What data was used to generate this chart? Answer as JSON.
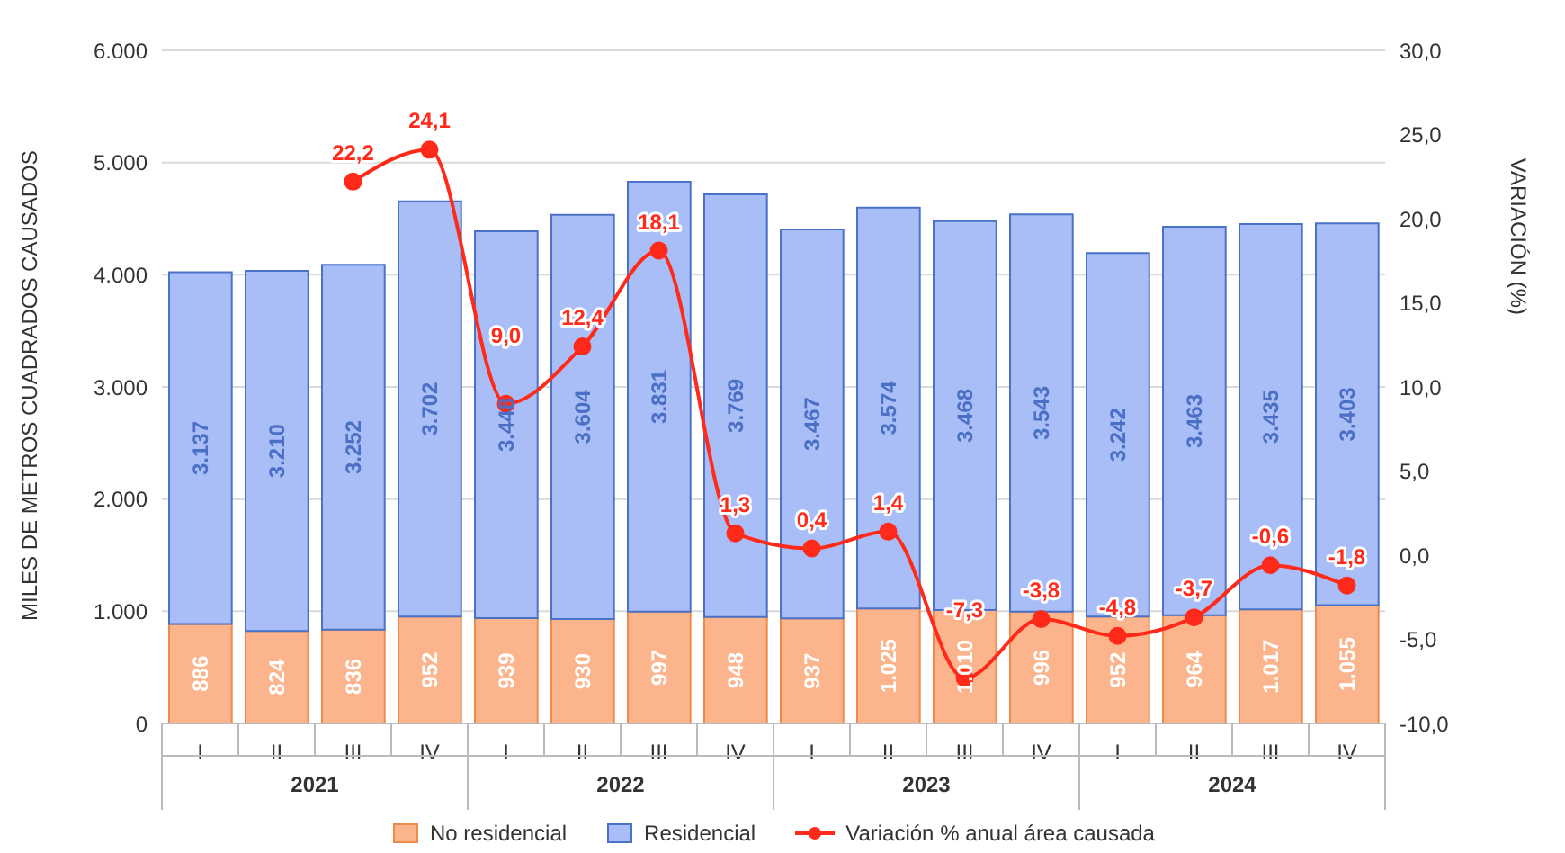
{
  "chart_data": {
    "type": "bar",
    "stacked": true,
    "categories": [
      "I",
      "II",
      "III",
      "IV",
      "I",
      "II",
      "III",
      "IV",
      "I",
      "II",
      "III",
      "IV",
      "I",
      "II",
      "III",
      "IV"
    ],
    "annotations": [
      "2021",
      "2022",
      "2023",
      "2024"
    ],
    "ylabel": "MILES DE METROS CUADRADOS CAUSADOS",
    "y2label": "VARIACIÓN (%)",
    "series": [
      {
        "name": "No residencial",
        "color": "#fbb48c",
        "values": [
          886,
          824,
          836,
          952,
          939,
          930,
          997,
          948,
          937,
          1025,
          1010,
          996,
          952,
          964,
          1017,
          1055
        ],
        "value_labels": [
          "886",
          "824",
          "836",
          "952",
          "939",
          "930",
          "997",
          "948",
          "937",
          "1.025",
          "1.010",
          "996",
          "952",
          "964",
          "1.017",
          "1.055"
        ]
      },
      {
        "name": "Residencial",
        "color": "#a9bef7",
        "values": [
          3137,
          3210,
          3252,
          3702,
          3448,
          3604,
          3831,
          3769,
          3467,
          3574,
          3468,
          3543,
          3242,
          3463,
          3435,
          3403
        ],
        "value_labels": [
          "3.137",
          "3.210",
          "3.252",
          "3.702",
          "3.448",
          "3.604",
          "3.831",
          "3.769",
          "3.467",
          "3.574",
          "3.468",
          "3.543",
          "3.242",
          "3.463",
          "3.435",
          "3.403"
        ]
      },
      {
        "name": "Variación % anual área causada",
        "type": "line",
        "axis": "y2",
        "color": "#ff2a1a",
        "values": [
          null,
          null,
          22.2,
          24.1,
          9.0,
          12.4,
          18.1,
          1.3,
          0.4,
          1.4,
          -7.3,
          -3.8,
          -4.8,
          -3.7,
          -0.6,
          -1.8
        ],
        "value_labels": [
          null,
          null,
          "22,2",
          "24,1",
          "9,0",
          "12,4",
          "18,1",
          "1,3",
          "0,4",
          "1,4",
          "-7,3",
          "-3,8",
          "-4,8",
          "-3,7",
          "-0,6",
          "-1,8"
        ]
      }
    ],
    "ylim": [
      0,
      6000
    ],
    "yticks": [
      {
        "value": 0,
        "label": "0"
      },
      {
        "value": 1000,
        "label": "1.000"
      },
      {
        "value": 2000,
        "label": "2.000"
      },
      {
        "value": 3000,
        "label": "3.000"
      },
      {
        "value": 4000,
        "label": "4.000"
      },
      {
        "value": 5000,
        "label": "5.000"
      },
      {
        "value": 6000,
        "label": "6.000"
      }
    ],
    "y2lim": [
      -10,
      30
    ],
    "y2ticks": [
      {
        "value": -10,
        "label": "-10,0"
      },
      {
        "value": -5,
        "label": "-5,0"
      },
      {
        "value": 0,
        "label": "0,0"
      },
      {
        "value": 5,
        "label": "5,0"
      },
      {
        "value": 10,
        "label": "10,0"
      },
      {
        "value": 15,
        "label": "15,0"
      },
      {
        "value": 20,
        "label": "20,0"
      },
      {
        "value": 25,
        "label": "25,0"
      },
      {
        "value": 30,
        "label": "30,0"
      }
    ],
    "grid": "y",
    "legend": "bottom",
    "marker": "circle",
    "line_style": "solid"
  }
}
